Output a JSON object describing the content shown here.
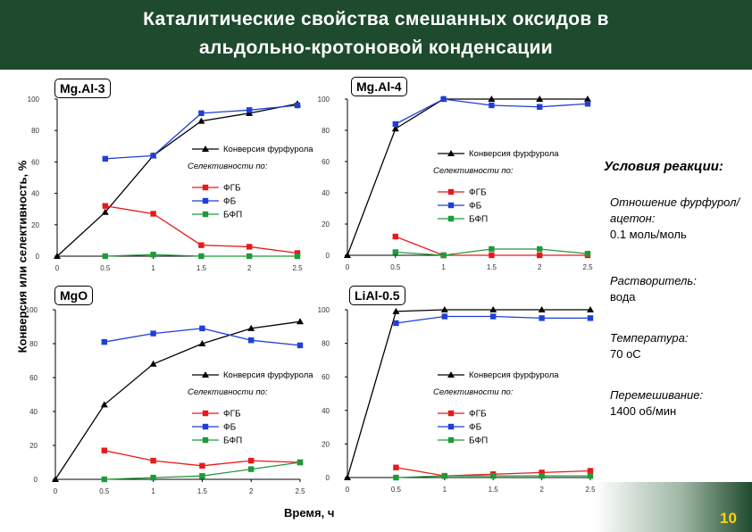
{
  "title": {
    "line1": "Каталитические свойства смешанных оксидов в",
    "line2": "альдольно-кротоновой конденсации"
  },
  "axis_labels": {
    "y": "Конверсия или селективность, %",
    "x": "Время, ч"
  },
  "conditions": {
    "title": "Условия реакции:",
    "ratio_label": "Отношение фурфурол/ацетон:",
    "ratio_value": "0.1 моль/моль",
    "solvent_label": "Растворитель:",
    "solvent_value": "вода",
    "temp_label": "Температура:",
    "temp_value": "70 оС",
    "stir_label": "Перемешивание:",
    "stir_value": "1400 об/мин"
  },
  "page_number": "10",
  "colors": {
    "header": "#1e4a2d",
    "conversion": "#000000",
    "fgb": "#e8191b",
    "fb": "#1f3fd6",
    "bfp": "#1f9a3a",
    "page_number": "#ffd400"
  },
  "chart_data": [
    {
      "type": "line",
      "panel_label": "Mg.Al-3",
      "x": [
        0,
        0.5,
        1,
        1.5,
        2,
        2.5
      ],
      "xticks": [
        "0",
        "0.5",
        "1",
        "1.5",
        "2",
        "2.5"
      ],
      "yticks": [
        "0",
        "20",
        "40",
        "60",
        "80",
        "100"
      ],
      "xlim": [
        0,
        2.5
      ],
      "ylim": [
        0,
        100
      ],
      "legend": {
        "conversion": "Конверсия фурфурола",
        "selectivity_title": "Селективности по:",
        "items": [
          "ФГБ",
          "ФБ",
          "БФП"
        ]
      },
      "series": [
        {
          "name": "Конверсия фурфурола",
          "values": [
            0,
            28,
            64,
            86,
            91,
            97
          ]
        },
        {
          "name": "ФГБ",
          "values": [
            null,
            32,
            27,
            7,
            6,
            2
          ]
        },
        {
          "name": "ФБ",
          "values": [
            null,
            62,
            64,
            91,
            93,
            96
          ]
        },
        {
          "name": "БФП",
          "values": [
            null,
            0,
            1,
            0,
            0,
            0
          ]
        }
      ]
    },
    {
      "type": "line",
      "panel_label": "Mg.Al-4",
      "x": [
        0,
        0.5,
        1,
        1.5,
        2,
        2.5
      ],
      "xticks": [
        "0",
        "0.5",
        "1",
        "1.5",
        "2",
        "2.5"
      ],
      "yticks": [
        "0",
        "20",
        "40",
        "60",
        "80",
        "100"
      ],
      "xlim": [
        0,
        2.5
      ],
      "ylim": [
        0,
        100
      ],
      "legend": {
        "conversion": "Конверсия фурфурола",
        "selectivity_title": "Селективности по:",
        "items": [
          "ФГБ",
          "ФБ",
          "БФП"
        ]
      },
      "series": [
        {
          "name": "Конверсия фурфурола",
          "values": [
            0,
            81,
            100,
            100,
            100,
            100
          ]
        },
        {
          "name": "ФГБ",
          "values": [
            null,
            12,
            0,
            0,
            0,
            0
          ]
        },
        {
          "name": "ФБ",
          "values": [
            null,
            84,
            100,
            96,
            95,
            97
          ]
        },
        {
          "name": "БФП",
          "values": [
            null,
            2,
            0,
            4,
            4,
            1
          ]
        }
      ]
    },
    {
      "type": "line",
      "panel_label": "MgO",
      "x": [
        0,
        0.5,
        1,
        1.5,
        2,
        2.5
      ],
      "xticks": [
        "0",
        "0.5",
        "1",
        "1.5",
        "2",
        "2.5"
      ],
      "yticks": [
        "0",
        "20",
        "40",
        "60",
        "80",
        "100"
      ],
      "xlim": [
        0,
        2.5
      ],
      "ylim": [
        0,
        100
      ],
      "legend": {
        "conversion": "Конверсия фурфурола",
        "selectivity_title": "Селективности по:",
        "items": [
          "ФГБ",
          "ФБ",
          "БФП"
        ]
      },
      "series": [
        {
          "name": "Конверсия фурфурола",
          "values": [
            0,
            44,
            68,
            80,
            89,
            93
          ]
        },
        {
          "name": "ФГБ",
          "values": [
            null,
            17,
            11,
            8,
            11,
            10
          ]
        },
        {
          "name": "ФБ",
          "values": [
            null,
            81,
            86,
            89,
            82,
            79
          ]
        },
        {
          "name": "БФП",
          "values": [
            null,
            0,
            1,
            2,
            6,
            10
          ]
        }
      ]
    },
    {
      "type": "line",
      "panel_label": "LiAl-0.5",
      "x": [
        0,
        0.5,
        1,
        1.5,
        2,
        2.5
      ],
      "xticks": [
        "0",
        "0.5",
        "1",
        "1.5",
        "2",
        "2.5"
      ],
      "yticks": [
        "0",
        "20",
        "40",
        "60",
        "80",
        "100"
      ],
      "xlim": [
        0,
        2.5
      ],
      "ylim": [
        0,
        100
      ],
      "legend": {
        "conversion": "Конверсия фурфурола",
        "selectivity_title": "Селективности по:",
        "items": [
          "ФГБ",
          "ФБ",
          "БФП"
        ]
      },
      "series": [
        {
          "name": "Конверсия фурфурола",
          "values": [
            0,
            99,
            100,
            100,
            100,
            100
          ]
        },
        {
          "name": "ФГБ",
          "values": [
            null,
            6,
            1,
            2,
            3,
            4
          ]
        },
        {
          "name": "ФБ",
          "values": [
            null,
            92,
            96,
            96,
            95,
            95
          ]
        },
        {
          "name": "БФП",
          "values": [
            null,
            0,
            1,
            1,
            1,
            1
          ]
        }
      ]
    }
  ]
}
